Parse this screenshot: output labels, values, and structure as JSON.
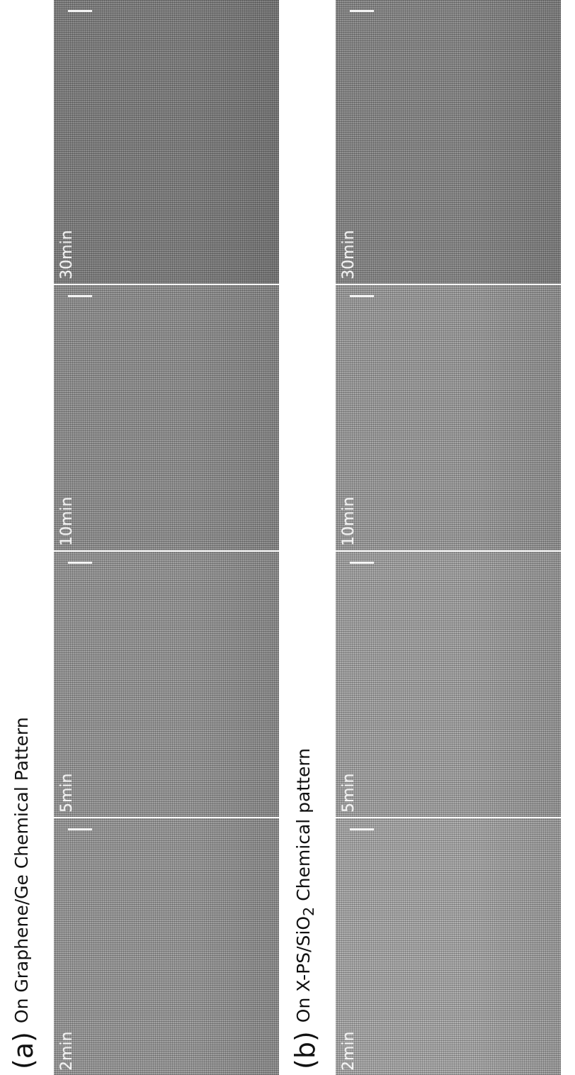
{
  "panels": [
    {
      "letter": "(a)",
      "title_main": "On Graphene/Ge Chemical Pattern",
      "title_sub": "",
      "title_tail": "",
      "tiles": [
        {
          "time": "2min",
          "tone": "#9a9a9a"
        },
        {
          "time": "5min",
          "tone": "#989898"
        },
        {
          "time": "10min",
          "tone": "#929292"
        },
        {
          "time": "30min",
          "tone": "#808080"
        }
      ]
    },
    {
      "letter": "(b)",
      "title_main": "On X-PS/SiO",
      "title_sub": "2",
      "title_tail": " Chemical pattern",
      "tiles": [
        {
          "time": "2min",
          "tone": "#aaaaaa"
        },
        {
          "time": "5min",
          "tone": "#a4a4a4"
        },
        {
          "time": "10min",
          "tone": "#9e9e9e"
        },
        {
          "time": "30min",
          "tone": "#888888"
        }
      ]
    }
  ]
}
